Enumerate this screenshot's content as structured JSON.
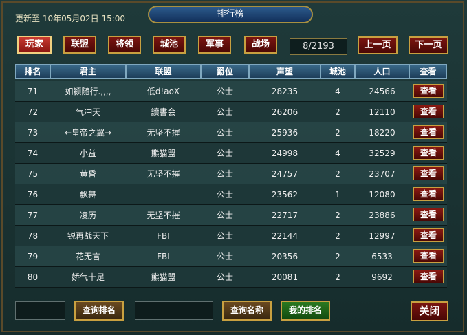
{
  "header": {
    "title": "排行榜",
    "updated": "更新至 10年05月02日 15:00"
  },
  "tabs": [
    "玩家",
    "联盟",
    "将领",
    "城池",
    "军事",
    "战场"
  ],
  "pager": {
    "page": "8/2193",
    "prev": "上一页",
    "next": "下一页"
  },
  "table": {
    "columns": [
      "排名",
      "君主",
      "联盟",
      "爵位",
      "声望",
      "城池",
      "人口",
      "查看"
    ],
    "view_button": "查看",
    "rows": [
      [
        71,
        "如颍随行.,,,,",
        "低d!aoX",
        "公士",
        28235,
        4,
        24566
      ],
      [
        72,
        "气冲天",
        "讀書会",
        "公士",
        26206,
        2,
        12110
      ],
      [
        73,
        "←皇帝之翼→",
        "无坚不摧",
        "公士",
        25936,
        2,
        18220
      ],
      [
        74,
        "小益",
        "熊猫盟",
        "公士",
        24998,
        4,
        32529
      ],
      [
        75,
        "黄昏",
        "无坚不摧",
        "公士",
        24757,
        2,
        23707
      ],
      [
        76,
        "飘舞",
        null,
        "公士",
        23562,
        1,
        12080
      ],
      [
        77,
        "凌历",
        "无坚不摧",
        "公士",
        22717,
        2,
        23886
      ],
      [
        78,
        "锐再战天下",
        "FBI",
        "公士",
        22144,
        2,
        12997
      ],
      [
        79,
        "花无言",
        "FBI",
        "公士",
        20356,
        2,
        6533
      ],
      [
        80,
        "娇气十足",
        "熊猫盟",
        "公士",
        20081,
        2,
        9692
      ]
    ]
  },
  "footer": {
    "search_rank": "查询排名",
    "search_name": "查询名称",
    "my_rank": "我的排名",
    "close": "关闭"
  }
}
